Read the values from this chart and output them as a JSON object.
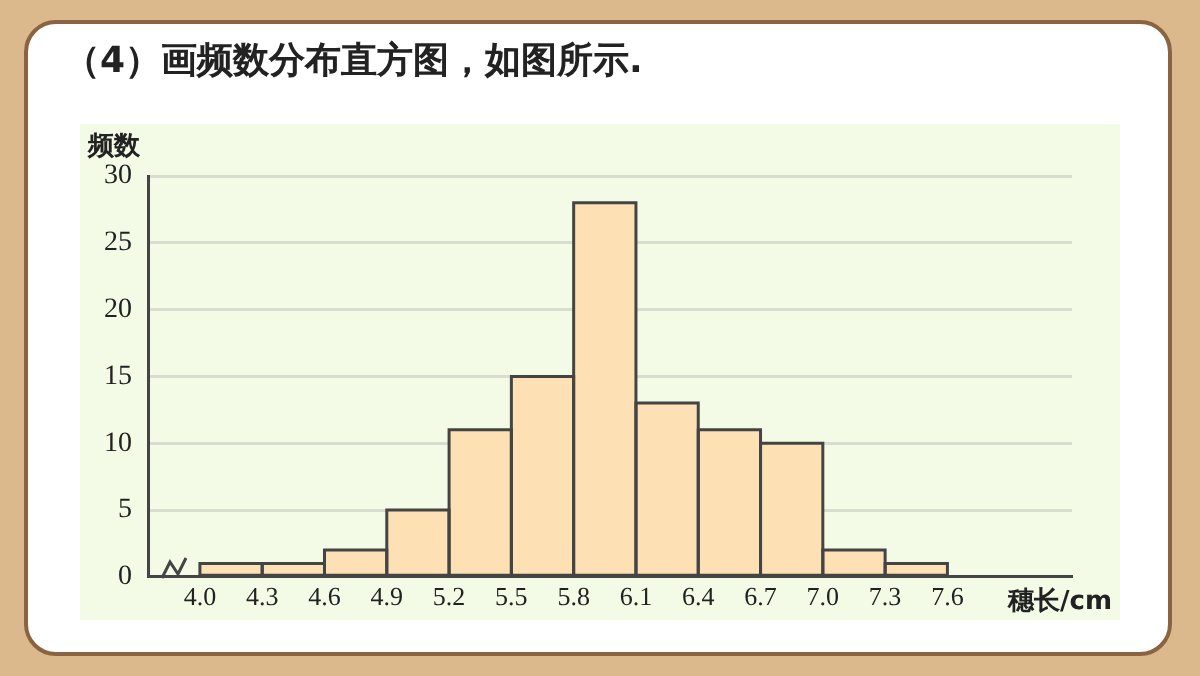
{
  "chart_data": {
    "type": "histogram",
    "title": "（4）画频数分布直方图，如图所示.",
    "xlabel": "穗长/cm",
    "ylabel": "频数",
    "bins": [
      4.0,
      4.3,
      4.6,
      4.9,
      5.2,
      5.5,
      5.8,
      6.1,
      6.4,
      6.7,
      7.0,
      7.3,
      7.6
    ],
    "values": [
      1,
      1,
      2,
      5,
      11,
      15,
      28,
      13,
      11,
      10,
      2,
      1
    ],
    "color": "#fde0b4",
    "xlim": [
      3.75,
      8.2
    ],
    "xticks": [
      {
        "value": 4,
        "label": "4.0"
      },
      4.3,
      4.6,
      4.9,
      5.2,
      5.5,
      5.8,
      6.1,
      6.4,
      6.7,
      {
        "value": 7,
        "label": "7.0"
      },
      7.3,
      7.6
    ],
    "ylim": [
      0,
      30
    ],
    "yticks": [
      0,
      5,
      10,
      15,
      20,
      25,
      30
    ],
    "grid": "y"
  }
}
